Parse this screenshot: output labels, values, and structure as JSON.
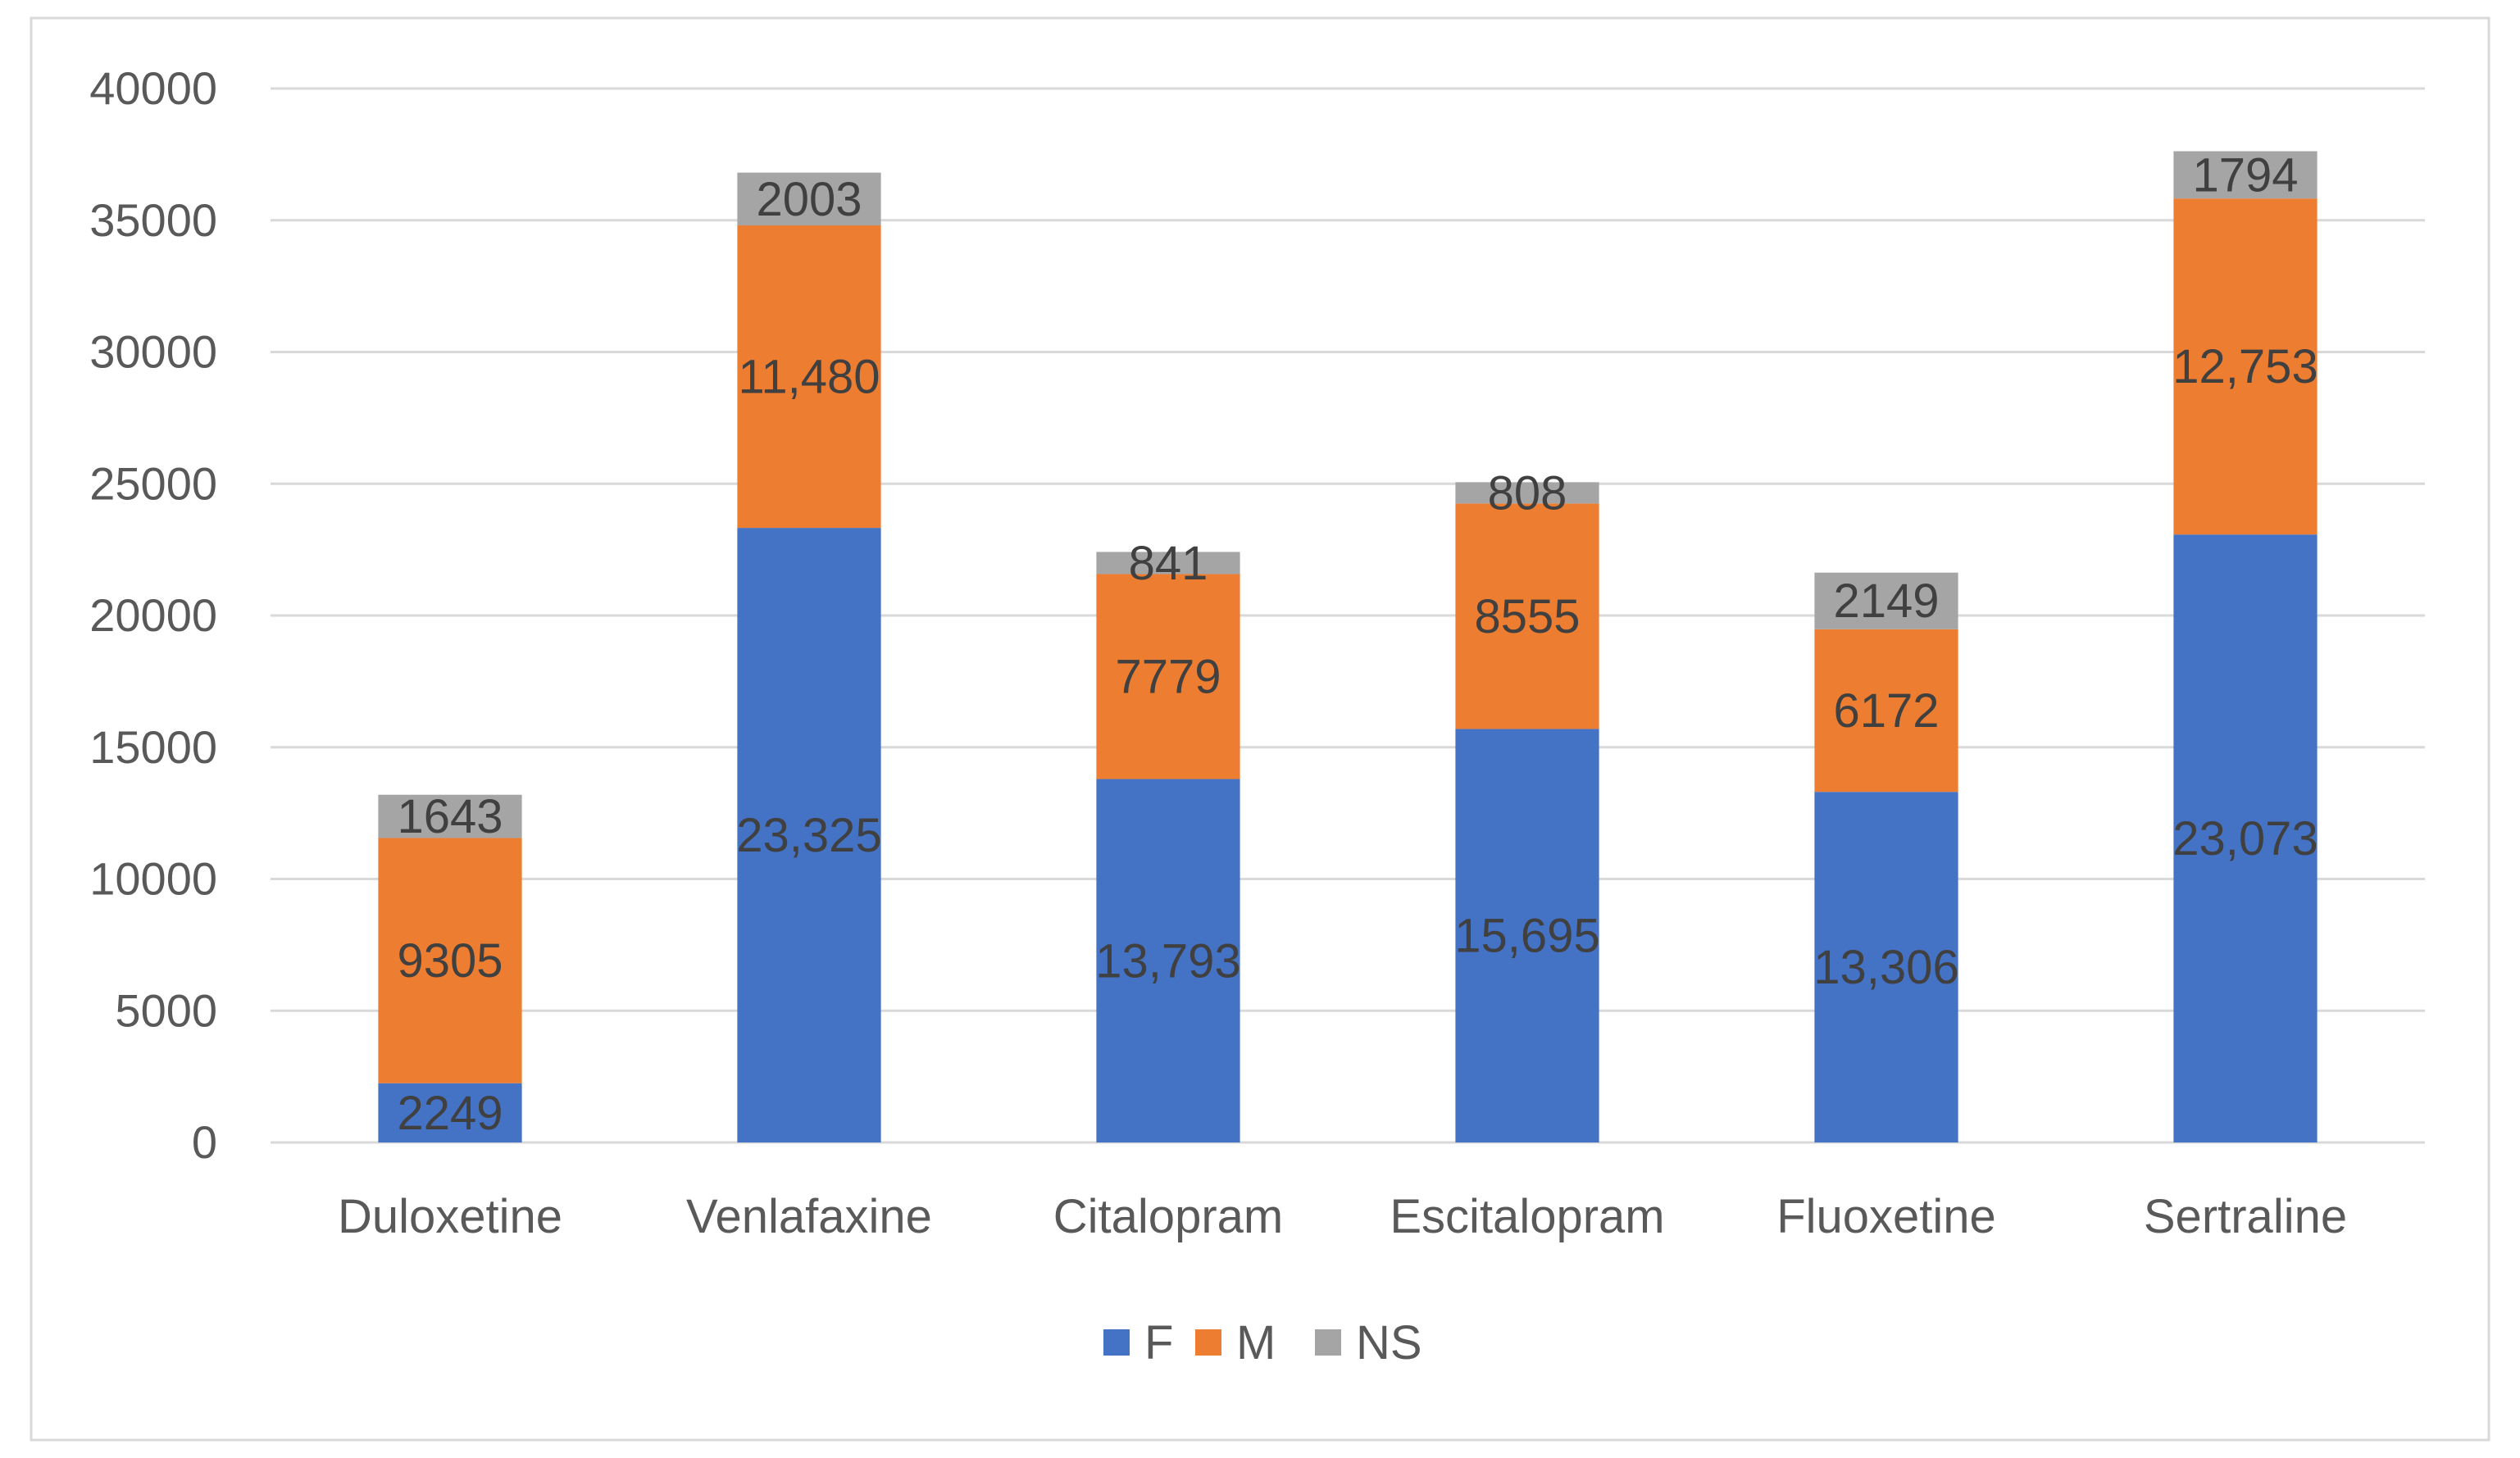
{
  "chart_data": {
    "type": "bar",
    "stacked": true,
    "categories": [
      "Duloxetine",
      "Venlafaxine",
      "Citalopram",
      "Escitalopram",
      "Fluoxetine",
      "Sertraline"
    ],
    "series": [
      {
        "name": "F",
        "color": "#4472C4",
        "values": [
          2249,
          23325,
          13793,
          15695,
          13306,
          23073
        ],
        "labels": [
          "2249",
          "23,325",
          "13,793",
          "15,695",
          "13,306",
          "23,073"
        ]
      },
      {
        "name": "M",
        "color": "#ED7D31",
        "values": [
          9305,
          11480,
          7779,
          8555,
          6172,
          12753
        ],
        "labels": [
          "9305",
          "11,480",
          "7779",
          "8555",
          "6172",
          "12,753"
        ]
      },
      {
        "name": "NS",
        "color": "#A5A5A5",
        "values": [
          1643,
          2003,
          841,
          808,
          2149,
          1794
        ],
        "labels": [
          "1643",
          "2003",
          "841",
          "808",
          "2149",
          "1794"
        ]
      }
    ],
    "ylim": [
      0,
      40000
    ],
    "yticks": [
      0,
      5000,
      10000,
      15000,
      20000,
      25000,
      30000,
      35000,
      40000
    ],
    "ytick_labels": [
      "0",
      "5000",
      "10000",
      "15000",
      "20000",
      "25000",
      "30000",
      "35000",
      "40000"
    ],
    "title": "",
    "xlabel": "",
    "ylabel": "",
    "grid": true,
    "legend": "bottom-center"
  }
}
